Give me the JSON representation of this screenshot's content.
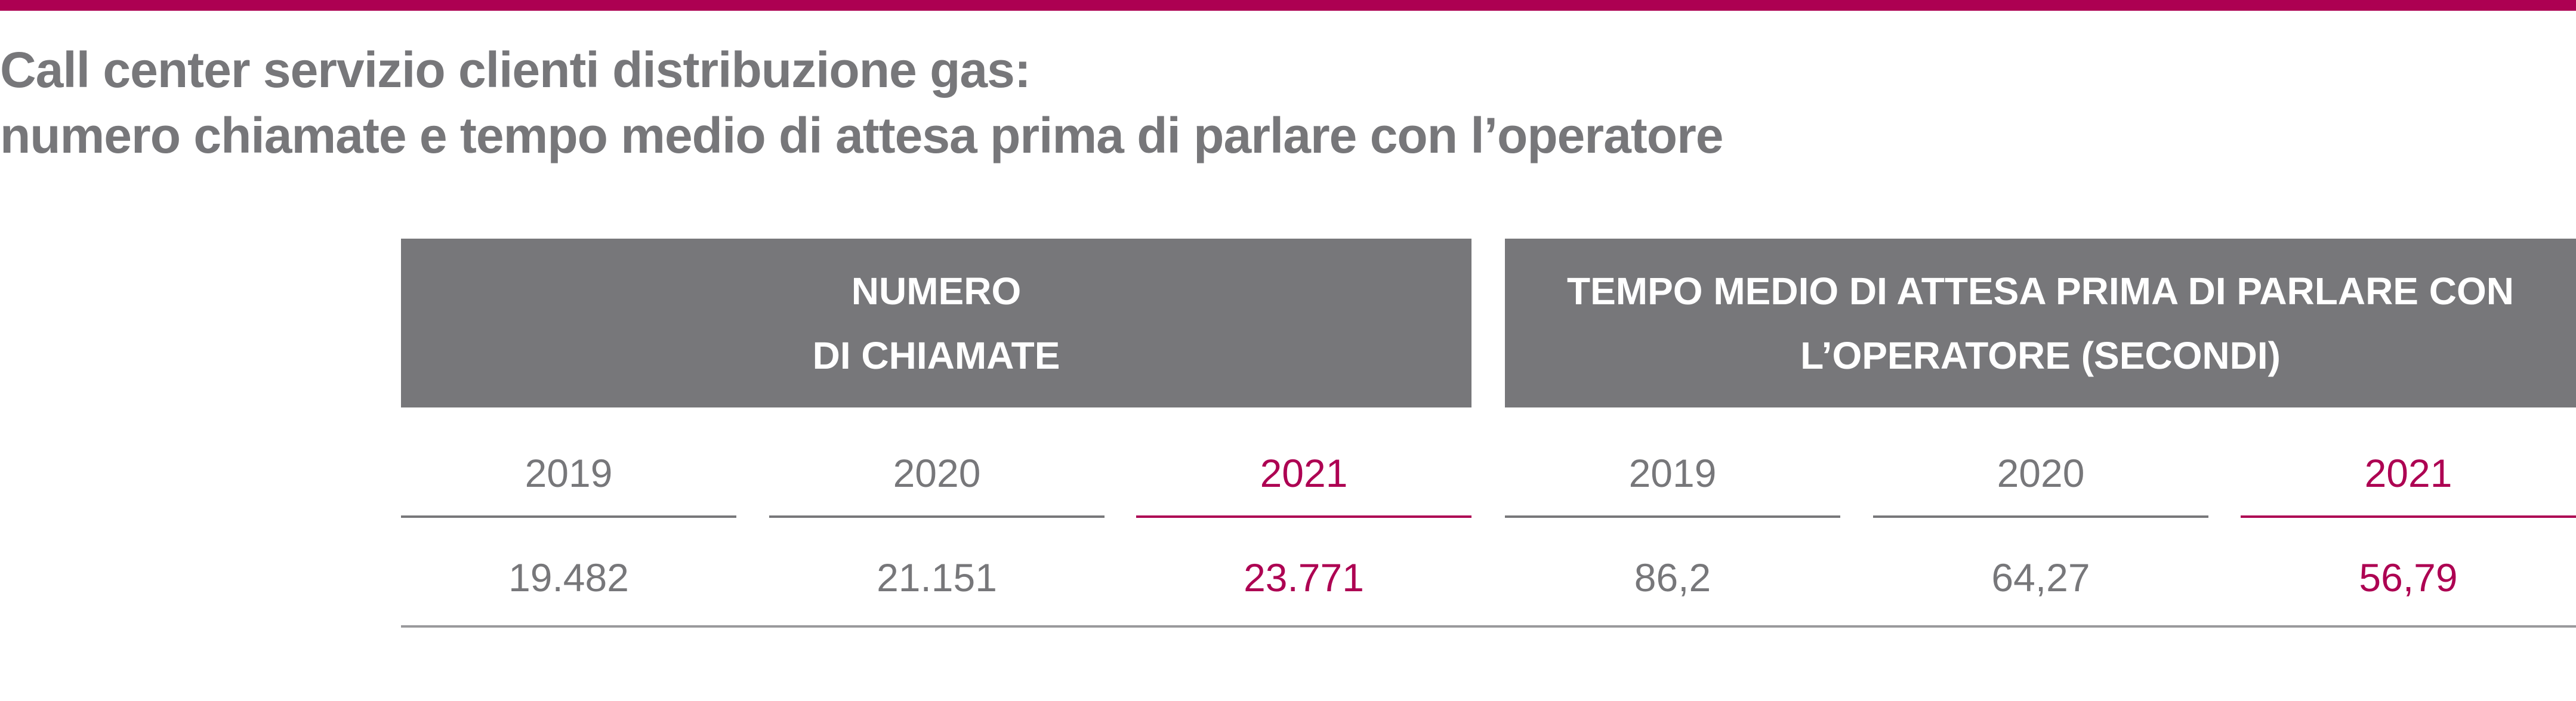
{
  "title": {
    "line1": "Call center servizio clienti distribuzione gas:",
    "line2": "numero chiamate e tempo medio di attesa prima di parlare con l’operatore"
  },
  "colors": {
    "accent": "#ad0052",
    "header_bg": "#77777a",
    "text_gray": "#77777a"
  },
  "table": {
    "groups": [
      {
        "line1": "NUMERO",
        "line2": "DI CHIAMATE",
        "years": [
          "2019",
          "2020",
          "2021"
        ],
        "values": [
          "19.482",
          "21.151",
          "23.771"
        ]
      },
      {
        "line1": "TEMPO MEDIO DI ATTESA PRIMA DI PARLARE CON",
        "line2": "L’OPERATORE (SECONDI)",
        "years": [
          "2019",
          "2020",
          "2021"
        ],
        "values": [
          "86,2",
          "64,27",
          "56,79"
        ]
      }
    ]
  }
}
